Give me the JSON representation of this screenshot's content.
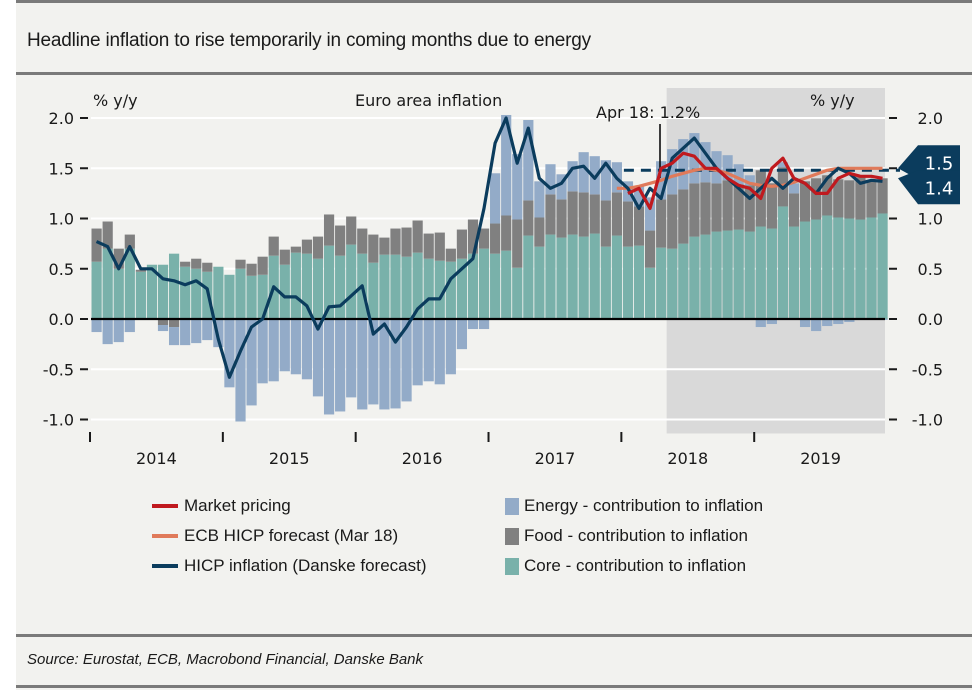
{
  "title": "Headline inflation to rise temporarily in coming months due to energy",
  "source": "Source: Eurostat, ECB, Macrobond Financial, Danske Bank",
  "colors": {
    "energy": "#93abc8",
    "food": "#808080",
    "core": "#79b1aa",
    "hicp": "#0b3c5d",
    "market": "#c0191e",
    "ecb": "#e07a5a",
    "forecast_shade": "#d9d9d9",
    "callout": "#0b3c5d"
  },
  "chart_data": {
    "type": "bar",
    "title": "Euro area inflation",
    "ylabel_left": "% y/y",
    "ylabel_right": "% y/y",
    "ylim": [
      -1.0,
      2.0
    ],
    "yticks": [
      2.0,
      1.5,
      1.0,
      0.5,
      0.0,
      -0.5,
      -1.0
    ],
    "ytick_labels": [
      "2.0",
      "1.5",
      "1.0",
      "0.5",
      "0.0",
      "-0.5",
      "-1.0"
    ],
    "x_start": "2014-01",
    "x_end": "2019-12",
    "year_labels": [
      "2014",
      "2015",
      "2016",
      "2017",
      "2018",
      "2019"
    ],
    "grid": true,
    "legend_position": "bottom",
    "forecast_region_start_index": 52,
    "annotation": {
      "text": "Apr 18: 1.2%",
      "index": 51,
      "dashed_level": 1.48,
      "dashed_from_index": 48
    },
    "callouts": [
      {
        "label": "1.5",
        "value": 1.5
      },
      {
        "label": "1.4",
        "value": 1.4
      }
    ],
    "series": [
      {
        "name": "Energy - contribution to inflation",
        "kind": "bar",
        "color_key": "energy",
        "values": [
          -0.13,
          -0.25,
          -0.23,
          -0.13,
          0.0,
          0.0,
          -0.06,
          -0.18,
          -0.26,
          -0.24,
          -0.21,
          -0.27,
          -0.68,
          -1.02,
          -0.86,
          -0.64,
          -0.62,
          -0.52,
          -0.55,
          -0.6,
          -0.77,
          -0.95,
          -0.92,
          -0.78,
          -0.9,
          -0.85,
          -0.9,
          -0.89,
          -0.82,
          -0.66,
          -0.62,
          -0.65,
          -0.55,
          -0.3,
          -0.1,
          -0.1,
          0.5,
          1.0,
          0.65,
          0.8,
          0.36,
          0.3,
          0.25,
          0.3,
          0.4,
          0.38,
          0.4,
          0.3,
          0.2,
          0.2,
          0.33,
          0.38,
          0.45,
          0.5,
          0.5,
          0.4,
          0.32,
          0.25,
          0.2,
          0.1,
          -0.08,
          -0.05,
          0.05,
          0.1,
          -0.08,
          -0.12,
          -0.07,
          -0.05,
          -0.03,
          -0.01,
          -0.01,
          -0.01
        ]
      },
      {
        "name": "Food - contribution to inflation",
        "kind": "bar",
        "color_key": "food",
        "values": [
          0.33,
          0.27,
          0.2,
          0.14,
          0.02,
          0.0,
          -0.06,
          -0.08,
          0.05,
          0.1,
          0.09,
          -0.01,
          0.0,
          0.09,
          0.12,
          0.18,
          0.19,
          0.15,
          0.06,
          0.14,
          0.22,
          0.31,
          0.3,
          0.28,
          0.25,
          0.28,
          0.17,
          0.26,
          0.29,
          0.32,
          0.25,
          0.28,
          0.13,
          0.29,
          0.34,
          0.2,
          0.3,
          0.35,
          0.48,
          0.35,
          0.29,
          0.4,
          0.38,
          0.43,
          0.44,
          0.39,
          0.46,
          0.43,
          0.45,
          0.39,
          0.37,
          0.48,
          0.54,
          0.54,
          0.53,
          0.52,
          0.48,
          0.5,
          0.45,
          0.46,
          0.56,
          0.45,
          0.39,
          0.33,
          0.4,
          0.41,
          0.4,
          0.38,
          0.38,
          0.42,
          0.37,
          0.35
        ]
      },
      {
        "name": "Core - contribution to inflation",
        "kind": "bar",
        "color_key": "core",
        "values": [
          0.57,
          0.7,
          0.5,
          0.7,
          0.47,
          0.54,
          0.54,
          0.65,
          0.52,
          0.5,
          0.47,
          0.52,
          0.44,
          0.5,
          0.43,
          0.44,
          0.63,
          0.54,
          0.66,
          0.65,
          0.6,
          0.73,
          0.63,
          0.74,
          0.65,
          0.56,
          0.64,
          0.64,
          0.62,
          0.66,
          0.6,
          0.58,
          0.57,
          0.6,
          0.65,
          0.7,
          0.65,
          0.68,
          0.51,
          0.83,
          0.72,
          0.84,
          0.81,
          0.84,
          0.82,
          0.85,
          0.72,
          0.83,
          0.72,
          0.73,
          0.51,
          0.71,
          0.7,
          0.75,
          0.82,
          0.84,
          0.87,
          0.88,
          0.89,
          0.87,
          0.92,
          0.9,
          1.12,
          0.92,
          0.97,
          0.99,
          1.03,
          1.01,
          1.0,
          0.99,
          1.01,
          1.05
        ]
      },
      {
        "name": "HICP inflation (Danske forecast)",
        "kind": "line",
        "color_key": "hicp",
        "values": [
          0.77,
          0.72,
          0.5,
          0.72,
          0.5,
          0.5,
          0.4,
          0.38,
          0.34,
          0.38,
          0.3,
          -0.2,
          -0.58,
          -0.32,
          -0.08,
          0.0,
          0.32,
          0.22,
          0.22,
          0.13,
          -0.1,
          0.12,
          0.13,
          0.23,
          0.33,
          -0.15,
          -0.05,
          -0.23,
          -0.08,
          0.1,
          0.2,
          0.2,
          0.4,
          0.5,
          0.6,
          1.1,
          1.75,
          2.0,
          1.55,
          1.9,
          1.4,
          1.3,
          1.35,
          1.5,
          1.52,
          1.4,
          1.55,
          1.4,
          1.3,
          1.1,
          1.3,
          1.2,
          1.6,
          1.7,
          1.8,
          1.65,
          1.5,
          1.4,
          1.3,
          1.2,
          1.3,
          1.4,
          1.3,
          1.4,
          1.35,
          1.25,
          1.4,
          1.5,
          1.45,
          1.35,
          1.38,
          1.37
        ]
      },
      {
        "name": "Market pricing",
        "kind": "line",
        "color_key": "market",
        "start_index": 48,
        "values": [
          1.25,
          1.3,
          1.1,
          1.5,
          1.55,
          1.65,
          1.62,
          1.5,
          1.5,
          1.4,
          1.33,
          1.3,
          1.2,
          1.5,
          1.6,
          1.4,
          1.35,
          1.25,
          1.25,
          1.4,
          1.45,
          1.42,
          1.42,
          1.4
        ]
      },
      {
        "name": "ECB HICP forecast (Mar 18)",
        "kind": "line",
        "color_key": "ecb",
        "start_index": 47,
        "values": [
          1.3,
          1.3,
          1.32,
          1.35,
          1.38,
          1.42,
          1.45,
          1.48,
          1.5,
          1.48,
          1.45,
          1.4,
          1.35,
          1.33,
          1.32,
          1.33,
          1.36,
          1.4,
          1.44,
          1.48,
          1.5,
          1.5,
          1.5,
          1.5,
          1.5
        ]
      }
    ]
  },
  "legend": {
    "items": [
      {
        "label": "Market pricing",
        "type": "line",
        "color_key": "market"
      },
      {
        "label": "ECB HICP forecast (Mar 18)",
        "type": "line",
        "color_key": "ecb"
      },
      {
        "label": "HICP inflation (Danske forecast)",
        "type": "line",
        "color_key": "hicp"
      },
      {
        "label": "Energy - contribution to inflation",
        "type": "box",
        "color_key": "energy"
      },
      {
        "label": "Food - contribution to inflation",
        "type": "box",
        "color_key": "food"
      },
      {
        "label": "Core - contribution to inflation",
        "type": "box",
        "color_key": "core"
      }
    ]
  }
}
